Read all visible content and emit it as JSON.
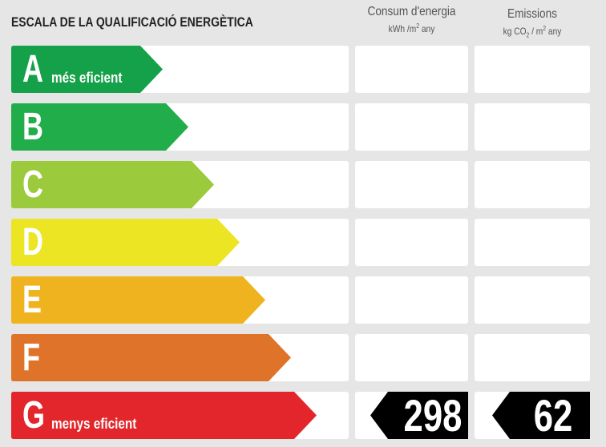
{
  "title": "ESCALA DE LA QUALIFICACIÓ ENERGÈTICA",
  "columns": {
    "energy": {
      "label": "Consum d'energia",
      "unit_prefix": "kWh /m",
      "unit_sup": "2",
      "unit_suffix": " any"
    },
    "emissions": {
      "label": "Emissions",
      "unit_prefix": "kg CO",
      "unit_sub": "2",
      "unit_mid": " / m",
      "unit_sup": "2",
      "unit_suffix": " any"
    }
  },
  "ratings": [
    {
      "letter": "A",
      "label": "més eficient",
      "color": "#15a04a"
    },
    {
      "letter": "B",
      "label": "",
      "color": "#22ad4b"
    },
    {
      "letter": "C",
      "label": "",
      "color": "#9bca3c"
    },
    {
      "letter": "D",
      "label": "",
      "color": "#ece523"
    },
    {
      "letter": "E",
      "label": "",
      "color": "#efb31f"
    },
    {
      "letter": "F",
      "label": "",
      "color": "#df7329"
    },
    {
      "letter": "G",
      "label": "menys eficient",
      "color": "#e3262b"
    }
  ],
  "current": {
    "rating": "G",
    "energy_value": "298",
    "emissions_value": "62"
  }
}
